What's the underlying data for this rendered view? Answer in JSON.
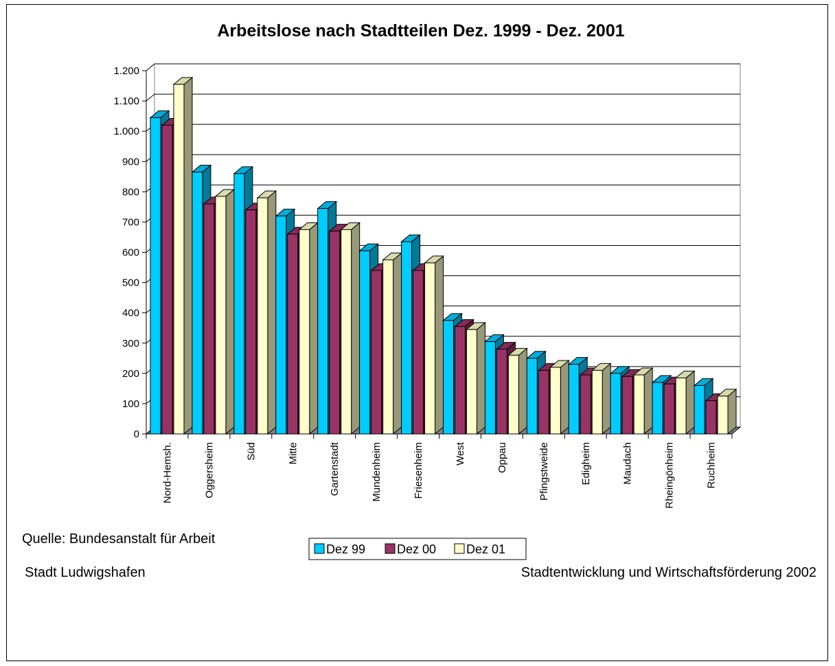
{
  "chart_data": {
    "type": "bar",
    "title": "Arbeitslose nach Stadtteilen Dez. 1999 -  Dez. 2001",
    "xlabel": "",
    "ylabel": "",
    "ylim": [
      0,
      1200
    ],
    "yticks": [
      0,
      100,
      200,
      300,
      400,
      500,
      600,
      700,
      800,
      900,
      1000,
      1100,
      1200
    ],
    "ytick_labels": [
      "0",
      "100",
      "200",
      "300",
      "400",
      "500",
      "600",
      "700",
      "800",
      "900",
      "1.000",
      "1.100",
      "1.200"
    ],
    "grid": true,
    "legend_position": "bottom",
    "categories": [
      "Nord-Hemsh.",
      "Oggersheim",
      "Süd",
      "Mitte",
      "Gartenstadt",
      "Mundenheim",
      "Friesenheim",
      "West",
      "Oppau",
      "Pfingstweide",
      "Edigheim",
      "Maudach",
      "Rheingönheim",
      "Ruchheim"
    ],
    "series": [
      {
        "name": "Dez 99",
        "color": "#00CCFF",
        "values": [
          1045,
          865,
          860,
          720,
          745,
          605,
          635,
          375,
          305,
          250,
          230,
          200,
          170,
          160
        ]
      },
      {
        "name": "Dez 00",
        "color": "#993366",
        "values": [
          1020,
          760,
          740,
          660,
          670,
          540,
          540,
          355,
          280,
          210,
          195,
          190,
          165,
          110
        ]
      },
      {
        "name": "Dez 01",
        "color": "#FFFFCC",
        "values": [
          1155,
          785,
          780,
          675,
          675,
          575,
          565,
          345,
          260,
          220,
          210,
          195,
          185,
          125
        ]
      }
    ]
  },
  "footer": {
    "source": "Quelle: Bundesanstalt für Arbeit",
    "left": "Stadt Ludwigshafen",
    "right": "Stadtentwicklung und Wirtschaftsförderung 2002"
  }
}
